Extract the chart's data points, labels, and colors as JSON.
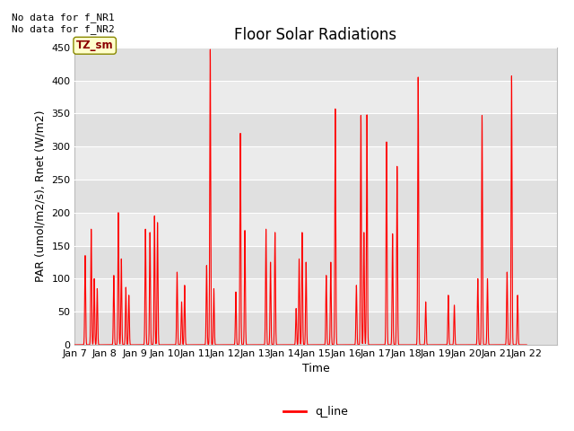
{
  "title": "Floor Solar Radiations",
  "ylabel": "PAR (umol/m2/s), Rnet (W/m2)",
  "xlabel": "Time",
  "xlim_start": 6,
  "xlim_end": 22,
  "ylim": [
    0,
    450
  ],
  "yticks": [
    0,
    50,
    100,
    150,
    200,
    250,
    300,
    350,
    400,
    450
  ],
  "xtick_labels": [
    "Jan 7",
    "Jan 8",
    "Jan 9",
    "Jan 10",
    "Jan 11",
    "Jan 12",
    "Jan 13",
    "Jan 14",
    "Jan 15",
    "Jan 16",
    "Jan 17",
    "Jan 18",
    "Jan 19",
    "Jan 20",
    "Jan 21",
    "Jan 22"
  ],
  "annotation_text": "No data for f_NR1\nNo data for f_NR2",
  "tooltip_label": "TZ_sm",
  "legend_label": "q_line",
  "line_color": "#ff0000",
  "plot_bg_color": "#e8e8e8",
  "band_color_light": "#ebebeb",
  "band_color_dark": "#d8d8d8",
  "title_fontsize": 12,
  "label_fontsize": 9,
  "tick_fontsize": 8,
  "annot_fontsize": 8
}
